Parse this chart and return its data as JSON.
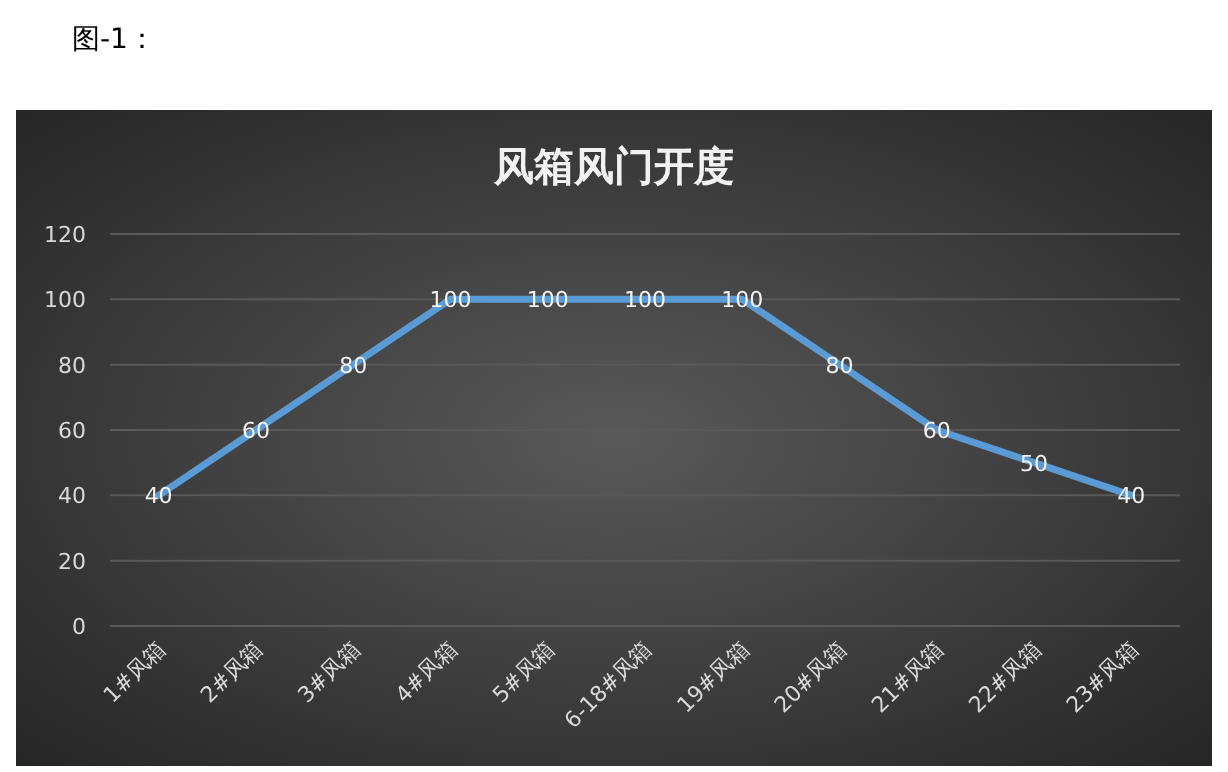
{
  "chart_data": {
    "type": "line",
    "title": "风箱风门开度",
    "categories": [
      "1#风箱",
      "2#风箱",
      "3#风箱",
      "4#风箱",
      "5#风箱",
      "6-18#风箱",
      "19#风箱",
      "20#风箱",
      "21#风箱",
      "22#风箱",
      "23#风箱"
    ],
    "series": [
      {
        "color": "#5b9bd5",
        "values": [
          40,
          60,
          80,
          100,
          100,
          100,
          100,
          80,
          60,
          50,
          40
        ]
      }
    ],
    "ylim": [
      0,
      120
    ],
    "yticks": [
      0,
      20,
      40,
      60,
      80,
      100,
      120
    ],
    "grid": "y",
    "data_labels": true,
    "marker": "none",
    "line_style": "solid",
    "annotations": [
      "图-1："
    ]
  }
}
